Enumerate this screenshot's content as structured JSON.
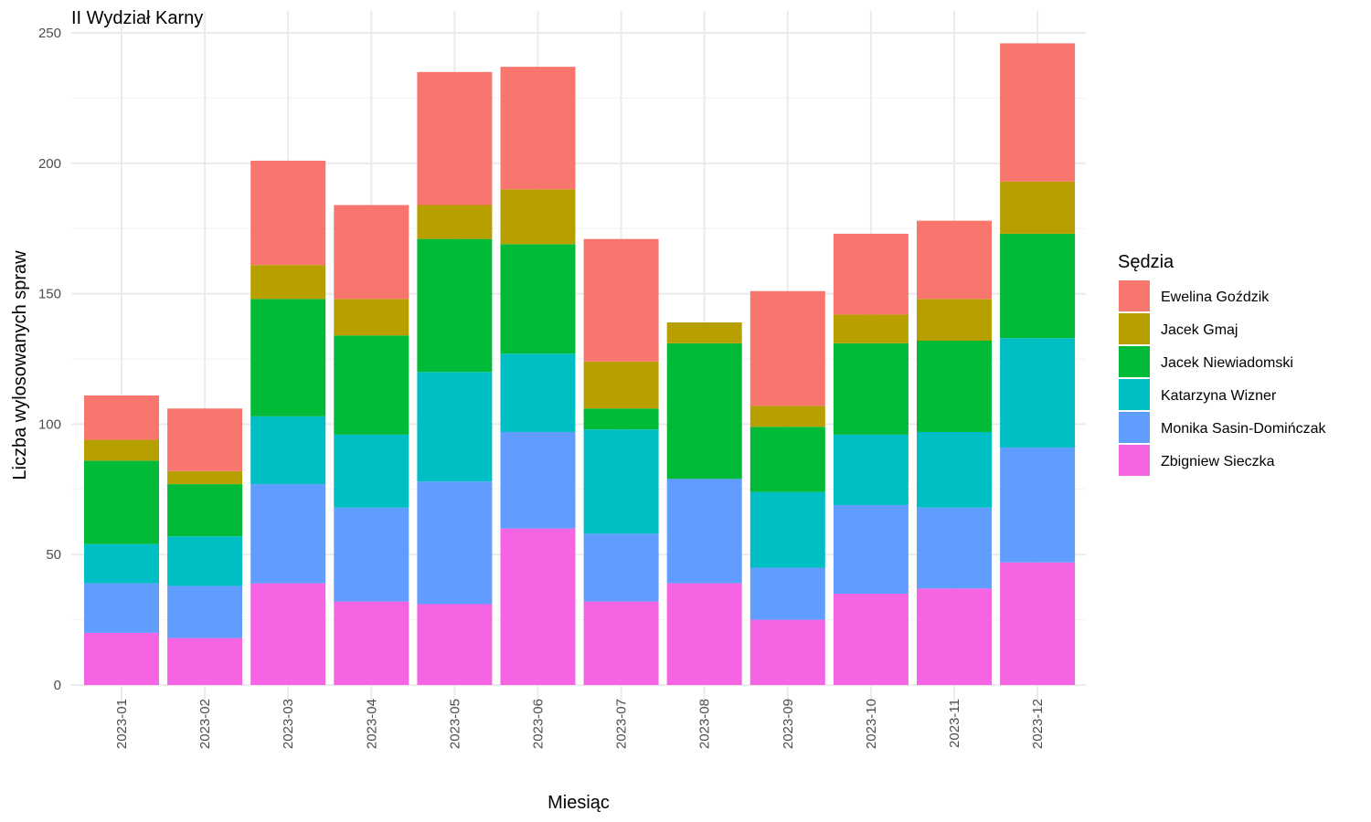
{
  "chart_data": {
    "type": "bar",
    "stacked": true,
    "title": "II Wydział Karny",
    "xlabel": "Miesiąc",
    "ylabel": "Liczba wylosowanych spraw",
    "ylim": [
      0,
      250
    ],
    "yticks": [
      0,
      50,
      100,
      150,
      200,
      250
    ],
    "grid": true,
    "legend": {
      "title": "Sędzia",
      "position": "right"
    },
    "categories": [
      "2023-01",
      "2023-02",
      "2023-03",
      "2023-04",
      "2023-05",
      "2023-06",
      "2023-07",
      "2023-08",
      "2023-09",
      "2023-10",
      "2023-11",
      "2023-12"
    ],
    "series": [
      {
        "name": "Zbigniew Sieczka",
        "color": "#F564E3",
        "values": [
          20,
          18,
          39,
          32,
          31,
          60,
          32,
          39,
          25,
          35,
          37,
          47
        ]
      },
      {
        "name": "Monika Sasin-Domińczak",
        "color": "#619CFF",
        "values": [
          19,
          20,
          38,
          36,
          47,
          37,
          26,
          40,
          20,
          34,
          31,
          44
        ]
      },
      {
        "name": "Katarzyna Wizner",
        "color": "#00BFC4",
        "values": [
          15,
          19,
          26,
          28,
          42,
          30,
          40,
          0,
          29,
          27,
          29,
          42
        ]
      },
      {
        "name": "Jacek Niewiadomski",
        "color": "#00BA38",
        "values": [
          32,
          20,
          45,
          38,
          51,
          42,
          8,
          52,
          25,
          35,
          35,
          40
        ]
      },
      {
        "name": "Jacek Gmaj",
        "color": "#B79F00",
        "values": [
          8,
          5,
          13,
          14,
          13,
          21,
          18,
          8,
          8,
          11,
          16,
          20
        ]
      },
      {
        "name": "Ewelina Goździk",
        "color": "#F8766D",
        "values": [
          17,
          24,
          40,
          36,
          51,
          47,
          47,
          0,
          44,
          31,
          30,
          53
        ]
      }
    ],
    "legend_order": [
      "Ewelina Goździk",
      "Jacek Gmaj",
      "Jacek Niewiadomski",
      "Katarzyna Wizner",
      "Monika Sasin-Domińczak",
      "Zbigniew Sieczka"
    ]
  }
}
